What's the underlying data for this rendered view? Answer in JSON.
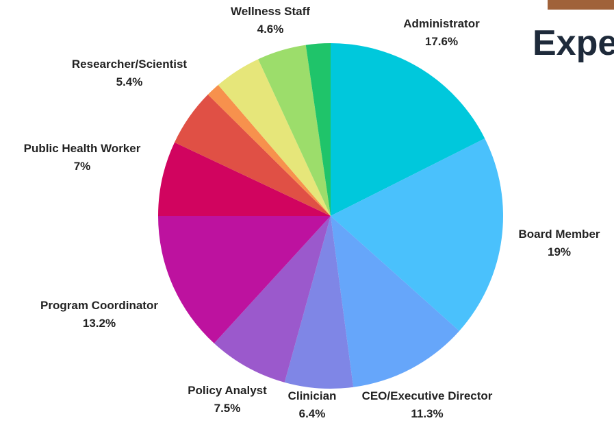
{
  "heading": "Expe",
  "chart_data": {
    "type": "pie",
    "categories": [
      "Administrator",
      "Board Member",
      "CEO/Executive Director",
      "Clinician",
      "Policy Analyst",
      "Program Coordinator",
      "Public Health Worker",
      "Researcher/Scientist",
      null,
      null,
      "Wellness Staff",
      null
    ],
    "values": [
      17.6,
      19,
      11.3,
      6.4,
      7.5,
      13.2,
      7,
      5.4,
      1.3,
      4.4,
      4.6,
      2.3
    ],
    "value_labels": [
      "17.6%",
      "19%",
      "11.3%",
      "6.4%",
      "7.5%",
      "13.2%",
      "7%",
      "5.4%",
      null,
      null,
      "4.6%",
      null
    ],
    "colors": [
      "#00c8dc",
      "#4ac1fc",
      "#66a6fa",
      "#7f86e6",
      "#9b59cc",
      "#bd129f",
      "#d1045f",
      "#e05045",
      "#f7914d",
      "#e6e67a",
      "#9cdd6b",
      "#1fc46a"
    ]
  }
}
